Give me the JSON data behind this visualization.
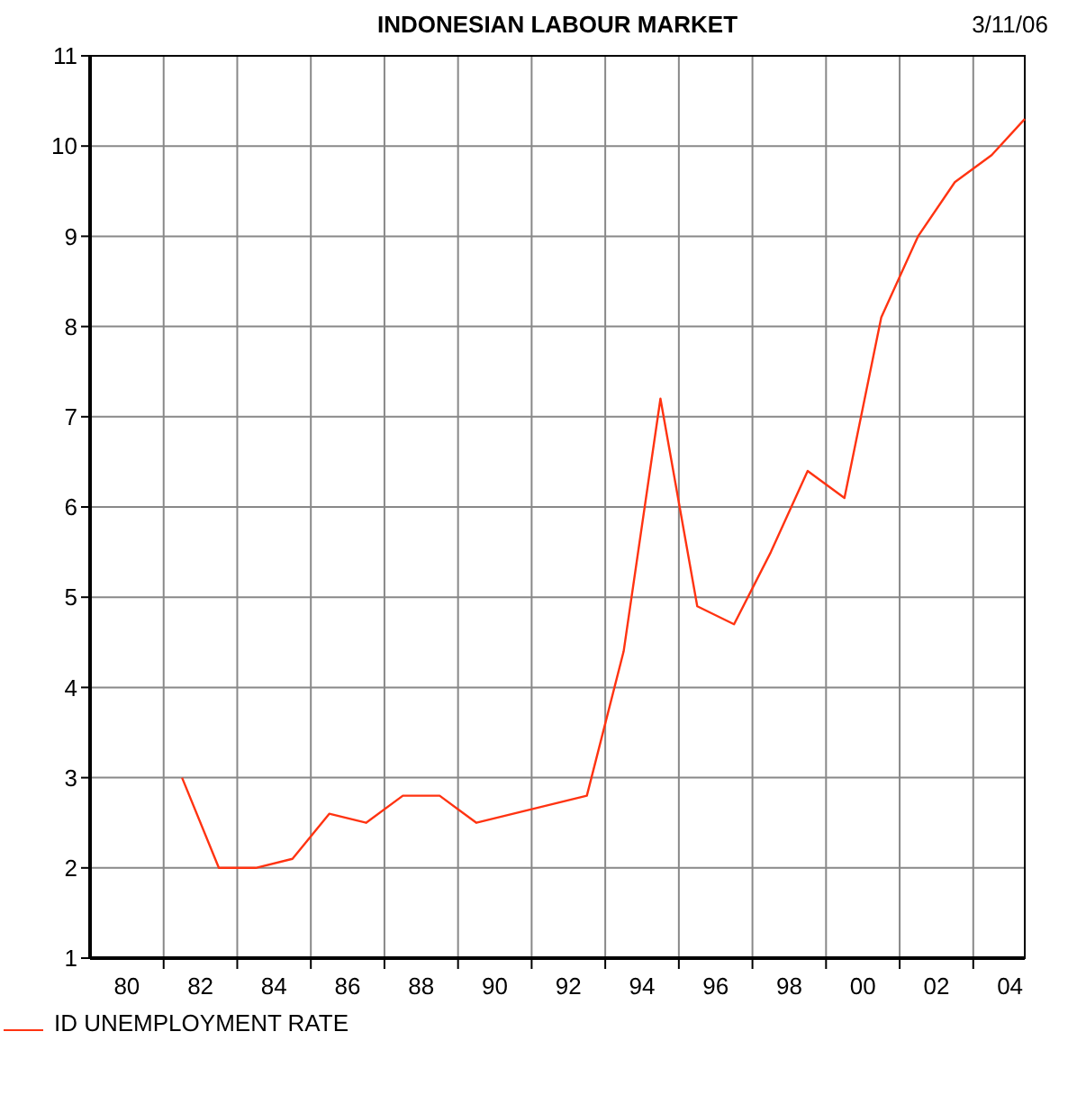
{
  "chart_data": {
    "type": "line",
    "title": "INDONESIAN LABOUR MARKET",
    "annotations": [
      "3/11/06"
    ],
    "x": [
      1981.5,
      1982.5,
      1983.5,
      1984.5,
      1985.5,
      1986.5,
      1987.5,
      1988.5,
      1989.5,
      1992.5,
      1993.5,
      1994.5,
      1995.5,
      1996.5,
      1997.5,
      1998.5,
      1999.5,
      2000.5,
      2001.5,
      2002.5,
      2003.5,
      2004.4
    ],
    "series": [
      {
        "name": "ID UNEMPLOYMENT RATE",
        "color": "#ff3311",
        "values": [
          3.0,
          2.0,
          2.0,
          2.1,
          2.6,
          2.5,
          2.8,
          2.8,
          2.5,
          2.8,
          4.4,
          7.2,
          4.9,
          4.7,
          5.5,
          6.4,
          6.1,
          8.1,
          9.0,
          9.6,
          9.9,
          10.3
        ]
      }
    ],
    "xlim": [
      1979,
      2004.4
    ],
    "xticks": [
      {
        "value": 1980,
        "label": "80"
      },
      {
        "value": 1981,
        "label": null
      },
      {
        "value": 1982,
        "label": "82"
      },
      {
        "value": 1983,
        "label": null
      },
      {
        "value": 1984,
        "label": "84"
      },
      {
        "value": 1985,
        "label": null
      },
      {
        "value": 1986,
        "label": "86"
      },
      {
        "value": 1987,
        "label": null
      },
      {
        "value": 1988,
        "label": "88"
      },
      {
        "value": 1989,
        "label": null
      },
      {
        "value": 1990,
        "label": "90"
      },
      {
        "value": 1991,
        "label": null
      },
      {
        "value": 1992,
        "label": "92"
      },
      {
        "value": 1993,
        "label": null
      },
      {
        "value": 1994,
        "label": "94"
      },
      {
        "value": 1995,
        "label": null
      },
      {
        "value": 1996,
        "label": "96"
      },
      {
        "value": 1997,
        "label": null
      },
      {
        "value": 1998,
        "label": "98"
      },
      {
        "value": 1999,
        "label": null
      },
      {
        "value": 2000,
        "label": "00"
      },
      {
        "value": 2001,
        "label": null
      },
      {
        "value": 2002,
        "label": "02"
      },
      {
        "value": 2003,
        "label": null
      },
      {
        "value": 2004,
        "label": "04"
      }
    ],
    "ylim": [
      1,
      11
    ],
    "yticks": [
      1,
      2,
      3,
      4,
      5,
      6,
      7,
      8,
      9,
      10,
      11
    ],
    "grid": true,
    "legend": "bottom left",
    "line_style": "solid",
    "marker": "none"
  }
}
